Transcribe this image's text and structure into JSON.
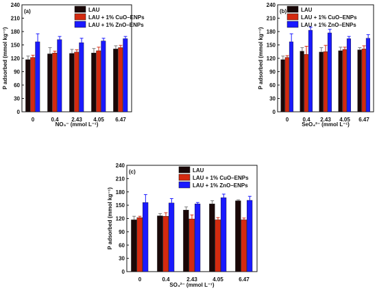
{
  "chart_data": [
    {
      "type": "bar",
      "panel_label": "(a)",
      "categories": [
        "0",
        "0.4",
        "2.43",
        "4.05",
        "6.47"
      ],
      "ylabel": "P adsorbed (mmol kg⁻¹)",
      "xlabel": "NO₃⁻ (mmol L⁻¹)",
      "ylim": [
        0,
        240
      ],
      "yticks": [
        0,
        30,
        60,
        90,
        120,
        150,
        180,
        210,
        240
      ],
      "legend_position": "top-left",
      "series": [
        {
          "name": "LAU",
          "color": "#1a0808",
          "values": [
            117,
            130,
            131,
            132,
            141
          ],
          "errors": [
            8,
            14,
            9,
            10,
            7
          ]
        },
        {
          "name": "LAU + 1% CuO–ENPs",
          "color": "#d42a10",
          "values": [
            122,
            132,
            134,
            137,
            144
          ],
          "errors": [
            5,
            4,
            5,
            8,
            5
          ]
        },
        {
          "name": "LAU + 1% ZnO–ENPs",
          "color": "#1a1aff",
          "values": [
            157,
            162,
            155,
            159,
            164
          ],
          "errors": [
            18,
            7,
            10,
            6,
            5
          ]
        }
      ]
    },
    {
      "type": "bar",
      "panel_label": "(b)",
      "categories": [
        "0",
        "0.4",
        "2.43",
        "4.05",
        "6.47"
      ],
      "ylabel": "P adsorbed (mmol kg⁻¹)",
      "xlabel": "SeO₄²⁻ (mmol L⁻¹)",
      "ylim": [
        0,
        240
      ],
      "yticks": [
        0,
        30,
        60,
        90,
        120,
        150,
        180,
        210,
        240
      ],
      "legend_position": "top-right",
      "series": [
        {
          "name": "LAU",
          "color": "#1a0808",
          "values": [
            117,
            136,
            134,
            137,
            139
          ],
          "errors": [
            8,
            8,
            10,
            8,
            5
          ]
        },
        {
          "name": "LAU + 1% CuO–ENPs",
          "color": "#d42a10",
          "values": [
            122,
            129,
            135,
            140,
            141
          ],
          "errors": [
            4,
            18,
            14,
            5,
            7
          ]
        },
        {
          "name": "LAU + 1% ZnO–ENPs",
          "color": "#1a1aff",
          "values": [
            157,
            183,
            177,
            164,
            165
          ],
          "errors": [
            18,
            7,
            8,
            5,
            8
          ]
        }
      ]
    },
    {
      "type": "bar",
      "panel_label": "(c)",
      "categories": [
        "0",
        "0.4",
        "2.43",
        "4.05",
        "6.47"
      ],
      "ylabel": "P adsorbed (mmol kg⁻¹)",
      "xlabel": "SO₄²⁻ (mmol L⁻¹)",
      "ylim": [
        0,
        240
      ],
      "yticks": [
        0,
        30,
        60,
        90,
        120,
        150,
        180,
        210,
        240
      ],
      "legend_position": "top-right",
      "series": [
        {
          "name": "LAU",
          "color": "#1a0808",
          "values": [
            117,
            126,
            139,
            153,
            160
          ],
          "errors": [
            8,
            5,
            7,
            7,
            2
          ]
        },
        {
          "name": "LAU + 1% CuO–ENPs",
          "color": "#d42a10",
          "values": [
            122,
            125,
            119,
            117,
            117
          ],
          "errors": [
            3,
            8,
            9,
            5,
            4
          ]
        },
        {
          "name": "LAU + 1% ZnO–ENPs",
          "color": "#1a1aff",
          "values": [
            156,
            155,
            153,
            167,
            161
          ],
          "errors": [
            18,
            10,
            3,
            8,
            9
          ]
        }
      ]
    }
  ]
}
